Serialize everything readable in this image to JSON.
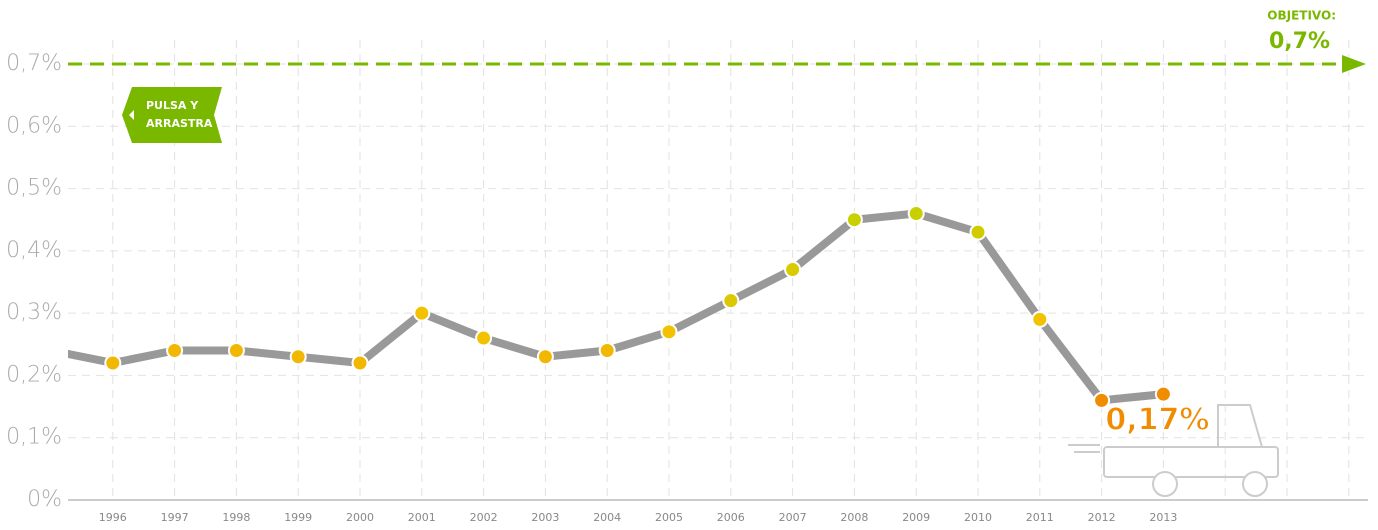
{
  "chart_data": {
    "type": "line",
    "categories": [
      null,
      "1996",
      "1997",
      "1998",
      "1999",
      "2000",
      "2001",
      "2002",
      "2003",
      "2004",
      "2005",
      "2006",
      "2007",
      "2008",
      "2009",
      "2010",
      "2011",
      "2012",
      "2013",
      null,
      null,
      null
    ],
    "values": [
      0.24,
      0.22,
      0.24,
      0.24,
      0.23,
      0.22,
      0.3,
      0.26,
      0.23,
      0.24,
      0.27,
      0.32,
      0.37,
      0.45,
      0.46,
      0.43,
      0.29,
      0.16,
      0.17,
      null,
      null,
      null
    ],
    "value_labels": [
      null,
      null,
      null,
      null,
      null,
      null,
      null,
      null,
      null,
      null,
      null,
      null,
      null,
      null,
      null,
      null,
      null,
      null,
      "0,17%",
      null,
      null,
      null
    ],
    "color": "#999999",
    "point_colors": [
      "#f2b700",
      "#f2b700",
      "#f2b700",
      "#f2b700",
      "#f2b700",
      "#f2b700",
      "#f2c200",
      "#f2c200",
      "#f2b700",
      "#f2b700",
      "#f2c200",
      "#dcc800",
      "#d8cc00",
      "#c8d000",
      "#c8d000",
      "#d0cc00",
      "#f2c200",
      "#f08c00",
      "#f08c00",
      null,
      null,
      null
    ],
    "ylim": [
      0,
      0.7
    ],
    "yticks": [
      {
        "value": 0,
        "label": "0%"
      },
      {
        "value": 0.1,
        "label": "0,1%"
      },
      {
        "value": 0.2,
        "label": "0,2%"
      },
      {
        "value": 0.3,
        "label": "0,3%"
      },
      {
        "value": 0.4,
        "label": "0,4%"
      },
      {
        "value": 0.5,
        "label": "0,5%"
      },
      {
        "value": 0.6,
        "label": "0,6%"
      },
      {
        "value": 0.7,
        "label": "0,7%"
      }
    ],
    "grid": true,
    "target": {
      "value": 0.7,
      "title": "OBJETIVO:",
      "label": "0,7%",
      "color": "#7ab800"
    },
    "button": {
      "line1": "PULSA Y",
      "line2": "ARRASTRA"
    }
  }
}
